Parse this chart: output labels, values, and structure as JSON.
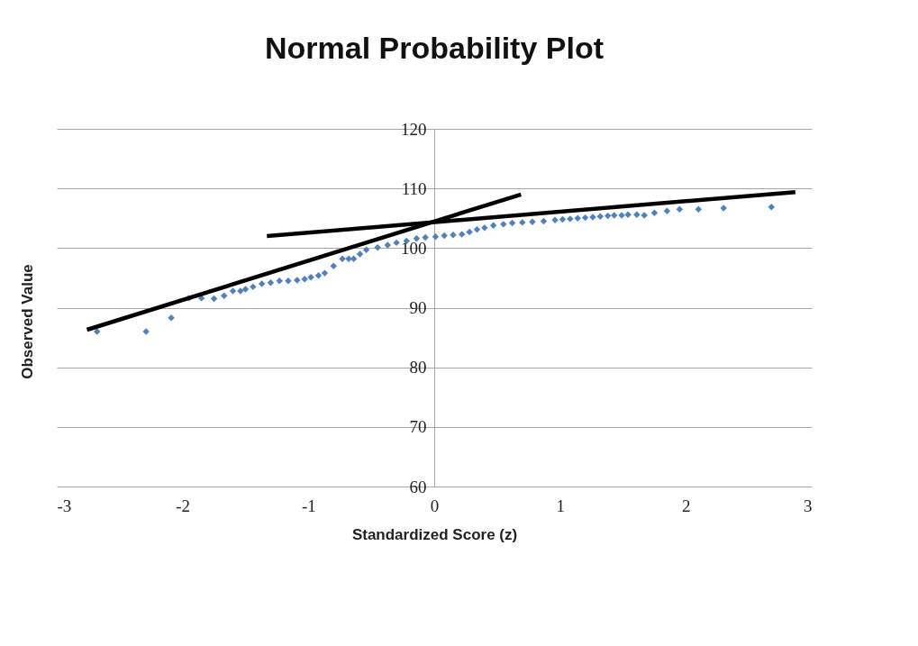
{
  "chart_data": {
    "type": "scatter",
    "title": "Normal Probability Plot",
    "xlabel": "Standardized Score (z)",
    "ylabel": "Observed Value",
    "xlim": [
      -3,
      3
    ],
    "xticks": [
      -3,
      -2,
      -1,
      0,
      1,
      2,
      3
    ],
    "ylim": [
      60,
      120
    ],
    "yticks": [
      60,
      70,
      80,
      90,
      100,
      110,
      120
    ],
    "grid": "y",
    "marker": "diamond",
    "series": [
      {
        "color": "#4f81bd",
        "x": [
          -2.68,
          -2.29,
          -2.09,
          -1.95,
          -1.85,
          -1.75,
          -1.67,
          -1.6,
          -1.54,
          -1.5,
          -1.44,
          -1.37,
          -1.3,
          -1.23,
          -1.16,
          -1.09,
          -1.03,
          -0.98,
          -0.92,
          -0.87,
          -0.8,
          -0.73,
          -0.68,
          -0.64,
          -0.59,
          -0.54,
          -0.45,
          -0.37,
          -0.3,
          -0.22,
          -0.14,
          -0.07,
          0.01,
          0.08,
          0.15,
          0.22,
          0.28,
          0.34,
          0.4,
          0.47,
          0.55,
          0.62,
          0.7,
          0.78,
          0.87,
          0.96,
          1.02,
          1.08,
          1.14,
          1.2,
          1.26,
          1.32,
          1.38,
          1.43,
          1.49,
          1.54,
          1.61,
          1.67,
          1.75,
          1.85,
          1.95,
          2.1,
          2.3,
          2.68
        ],
        "values": [
          86,
          86,
          88.3,
          91.6,
          91.6,
          91.5,
          92,
          92.8,
          92.8,
          93.1,
          93.5,
          94,
          94.2,
          94.5,
          94.5,
          94.6,
          94.8,
          95.1,
          95.4,
          95.8,
          97,
          98.2,
          98.2,
          98.2,
          99,
          99.7,
          100.1,
          100.5,
          100.9,
          101.2,
          101.6,
          101.8,
          101.9,
          102.1,
          102.2,
          102.3,
          102.7,
          103.1,
          103.4,
          103.8,
          104,
          104.2,
          104.3,
          104.4,
          104.5,
          104.7,
          104.8,
          104.9,
          105,
          105.1,
          105.2,
          105.3,
          105.4,
          105.5,
          105.5,
          105.6,
          105.6,
          105.5,
          105.9,
          106.2,
          106.5,
          106.5,
          106.7,
          106.9
        ]
      },
      {
        "color": "#000000",
        "type": "line",
        "marker": "none",
        "x": [
          -2.76,
          0.69
        ],
        "values": [
          86.3,
          109
        ]
      },
      {
        "color": "#000000",
        "type": "line",
        "marker": "none",
        "x": [
          -1.33,
          2.87
        ],
        "values": [
          102,
          109.4
        ]
      }
    ]
  }
}
